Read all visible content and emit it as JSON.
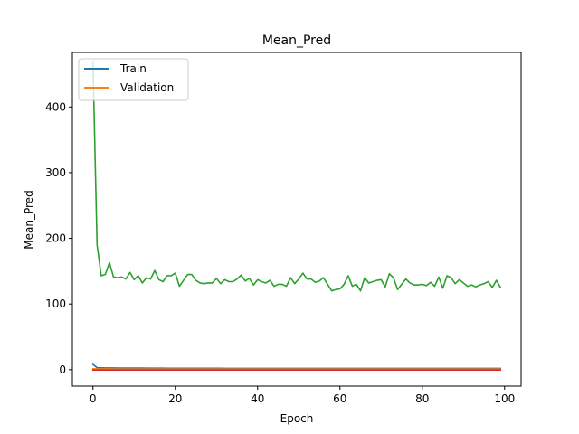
{
  "chart_data": {
    "type": "line",
    "title": "Mean_Pred",
    "xlabel": "Epoch",
    "ylabel": "Mean_Pred",
    "xlim": [
      -5,
      104
    ],
    "ylim": [
      -25,
      483
    ],
    "xticks": [
      0,
      20,
      40,
      60,
      80,
      100
    ],
    "yticks": [
      0,
      100,
      200,
      300,
      400
    ],
    "grid": false,
    "legend_position": "top-left",
    "x": [
      0,
      1,
      2,
      3,
      4,
      5,
      6,
      7,
      8,
      9,
      10,
      11,
      12,
      13,
      14,
      15,
      16,
      17,
      18,
      19,
      20,
      21,
      22,
      23,
      24,
      25,
      26,
      27,
      28,
      29,
      30,
      31,
      32,
      33,
      34,
      35,
      36,
      37,
      38,
      39,
      40,
      41,
      42,
      43,
      44,
      45,
      46,
      47,
      48,
      49,
      50,
      51,
      52,
      53,
      54,
      55,
      56,
      57,
      58,
      59,
      60,
      61,
      62,
      63,
      64,
      65,
      66,
      67,
      68,
      69,
      70,
      71,
      72,
      73,
      74,
      75,
      76,
      77,
      78,
      79,
      80,
      81,
      82,
      83,
      84,
      85,
      86,
      87,
      88,
      89,
      90,
      91,
      92,
      93,
      94,
      95,
      96,
      97,
      98,
      99
    ],
    "series": [
      {
        "name": "Train",
        "color": "#1f77b4",
        "values": [
          8,
          3,
          2.8,
          2.7,
          2.6,
          2.6,
          2.5,
          2.5,
          2.5,
          2.4,
          2.4,
          2.4,
          2.4,
          2.3,
          2.3,
          2.3,
          2.3,
          2.3,
          2.2,
          2.2,
          2.2,
          2.2,
          2.2,
          2.2,
          2.1,
          2.1,
          2.1,
          2.1,
          2.1,
          2.1,
          2.1,
          2.1,
          2.0,
          2.0,
          2.0,
          2.0,
          2.0,
          2.0,
          2.0,
          2.0,
          2.0,
          2.0,
          2.0,
          2.0,
          2.0,
          2.0,
          2.0,
          2.0,
          2.0,
          2.0,
          2.0,
          2.0,
          2.0,
          2.0,
          2.0,
          2.0,
          2.0,
          2.0,
          2.0,
          2.0,
          2.0,
          2.0,
          2.0,
          2.0,
          2.0,
          2.0,
          2.0,
          2.0,
          2.0,
          2.0,
          2.0,
          2.0,
          2.0,
          2.0,
          2.0,
          2.0,
          2.0,
          2.0,
          2.0,
          2.0,
          2.0,
          2.0,
          2.0,
          2.0,
          2.0,
          2.0,
          2.0,
          2.0,
          2.0,
          2.0,
          2.0,
          2.0,
          2.0,
          2.0,
          2.0,
          2.0,
          2.0,
          2.0,
          2.0,
          2.0
        ]
      },
      {
        "name": "Validation",
        "color": "#ff7f0e",
        "values": [
          1.5,
          1.2,
          1.1,
          1.0,
          1.0,
          1.0,
          0.9,
          0.9,
          0.9,
          0.9,
          0.9,
          0.9,
          0.9,
          0.9,
          0.9,
          0.9,
          0.9,
          0.9,
          0.9,
          0.9,
          0.9,
          0.9,
          0.9,
          0.9,
          0.9,
          0.9,
          0.9,
          0.9,
          0.9,
          0.9,
          0.9,
          0.9,
          0.9,
          0.9,
          0.9,
          0.9,
          0.9,
          0.9,
          0.9,
          0.9,
          0.9,
          0.9,
          0.9,
          0.9,
          0.9,
          0.9,
          0.9,
          0.9,
          0.9,
          0.9,
          0.9,
          0.9,
          0.9,
          0.9,
          0.9,
          0.9,
          0.9,
          0.9,
          0.9,
          0.9,
          0.9,
          0.9,
          0.9,
          0.9,
          0.9,
          0.9,
          0.9,
          0.9,
          0.9,
          0.9,
          0.9,
          0.9,
          0.9,
          0.9,
          0.9,
          0.9,
          0.9,
          0.9,
          0.9,
          0.9,
          0.9,
          0.9,
          0.9,
          0.9,
          0.9,
          0.9,
          0.9,
          0.9,
          0.9,
          0.9,
          0.9,
          0.9,
          0.9,
          0.9,
          0.9,
          0.9,
          0.9,
          0.9,
          0.9,
          0.9
        ]
      },
      {
        "color": "#2ca02c",
        "values": [
          468,
          190,
          143,
          145,
          163,
          141,
          140,
          141,
          138,
          148,
          137,
          143,
          132,
          140,
          138,
          151,
          137,
          134,
          143,
          143,
          147,
          127,
          136,
          145,
          145,
          136,
          132,
          131,
          132,
          132,
          139,
          131,
          137,
          134,
          134,
          138,
          144,
          135,
          139,
          129,
          137,
          134,
          132,
          136,
          127,
          130,
          130,
          127,
          140,
          131,
          138,
          147,
          138,
          138,
          133,
          135,
          140,
          130,
          120,
          122,
          123,
          130,
          143,
          127,
          130,
          120,
          140,
          132,
          134,
          136,
          137,
          126,
          146,
          140,
          122,
          130,
          138,
          132,
          129,
          129,
          130,
          128,
          133,
          127,
          141,
          124,
          143,
          140,
          131,
          137,
          132,
          127,
          129,
          126,
          129,
          131,
          134,
          125,
          136,
          125
        ]
      },
      {
        "color": "#d62728",
        "values": [
          -0.5,
          -0.5,
          -0.5,
          -0.5,
          -0.5,
          -0.5,
          -0.5,
          -0.5,
          -0.5,
          -0.5,
          -0.5,
          -0.5,
          -0.5,
          -0.5,
          -0.5,
          -0.5,
          -0.5,
          -0.5,
          -0.5,
          -0.5,
          -0.5,
          -0.5,
          -0.5,
          -0.5,
          -0.5,
          -0.5,
          -0.5,
          -0.5,
          -0.5,
          -0.5,
          -0.5,
          -0.5,
          -0.5,
          -0.5,
          -0.5,
          -0.5,
          -0.5,
          -0.5,
          -0.5,
          -0.5,
          -0.5,
          -0.5,
          -0.5,
          -0.5,
          -0.5,
          -0.5,
          -0.5,
          -0.5,
          -0.5,
          -0.5,
          -0.5,
          -0.5,
          -0.5,
          -0.5,
          -0.5,
          -0.5,
          -0.5,
          -0.5,
          -0.5,
          -0.5,
          -0.5,
          -0.5,
          -0.5,
          -0.5,
          -0.5,
          -0.5,
          -0.5,
          -0.5,
          -0.5,
          -0.5,
          -0.5,
          -0.5,
          -0.5,
          -0.5,
          -0.5,
          -0.5,
          -0.5,
          -0.5,
          -0.5,
          -0.5,
          -0.5,
          -0.5,
          -0.5,
          -0.5,
          -0.5,
          -0.5,
          -0.5,
          -0.5,
          -0.5,
          -0.5,
          -0.5,
          -0.5,
          -0.5,
          -0.5,
          -0.5,
          -0.5,
          -0.5,
          -0.5,
          -0.5,
          -0.5
        ]
      }
    ]
  }
}
